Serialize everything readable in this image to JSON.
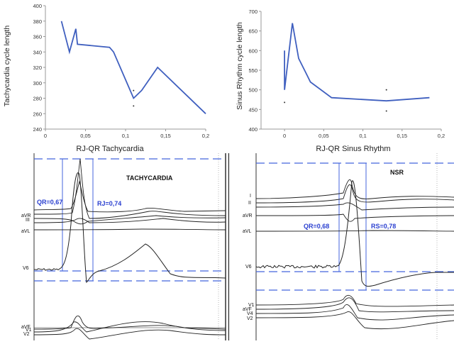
{
  "chart_data": [
    {
      "type": "line",
      "xlabel": "RJ-QR Tachycardia",
      "ylabel": "Tachycardia cycle length",
      "xlim": [
        0,
        0.2
      ],
      "ylim": [
        240,
        400
      ],
      "xticks": [
        "0",
        "0,05",
        "0,1",
        "0,15",
        "0,2"
      ],
      "yticks": [
        "240",
        "260",
        "280",
        "300",
        "320",
        "340",
        "360",
        "380",
        "400"
      ],
      "series": [
        {
          "x": [
            0.02,
            0.03,
            0.038,
            0.04,
            0.08,
            0.085,
            0.11,
            0.12,
            0.14,
            0.2
          ],
          "y": [
            380,
            340,
            370,
            350,
            346,
            340,
            280,
            290,
            320,
            260
          ]
        }
      ],
      "scatter_points": [
        {
          "x": 0.11,
          "y": 290
        },
        {
          "x": 0.11,
          "y": 270
        }
      ],
      "grid": false
    },
    {
      "type": "line",
      "xlabel": "RJ-QR Sinus Rhythm",
      "ylabel": "Sinus Rhythm cycle length",
      "xlim": [
        -0.03,
        0.2
      ],
      "ylim": [
        400,
        700
      ],
      "xticks": [
        "0",
        "0,05",
        "0,1",
        "0,15",
        "0,2"
      ],
      "yticks": [
        "400",
        "450",
        "500",
        "550",
        "600",
        "650",
        "700"
      ],
      "series": [
        {
          "x": [
            0,
            0,
            0.01,
            0.018,
            0.028,
            0.033,
            0.06,
            0.13,
            0.185
          ],
          "y": [
            600,
            500,
            670,
            580,
            540,
            520,
            480,
            472,
            480
          ]
        }
      ],
      "scatter_points": [
        {
          "x": 0,
          "y": 468
        },
        {
          "x": 0.13,
          "y": 500
        },
        {
          "x": 0.13,
          "y": 446
        }
      ],
      "grid": false
    }
  ],
  "ecg": {
    "left": {
      "title": "TACHYCARDIA",
      "qr_label": "QR=0,67",
      "rj_label": "RJ=0,74",
      "leads": [
        "aVR",
        "III",
        "aVL",
        "V6",
        "aVF",
        "V1",
        "V2"
      ]
    },
    "right": {
      "title": "NSR",
      "qr_label": "QR=0,68",
      "rs_label": "RS=0,78",
      "leads": [
        "I",
        "II",
        "aVR",
        "aVL",
        "V6",
        "aVF",
        "V1",
        "V4",
        "V2"
      ]
    }
  },
  "colors": {
    "line": "#3f5fbf",
    "annotation": "#2a3fd0",
    "trace": "#222222",
    "guide": "#4466dd"
  }
}
